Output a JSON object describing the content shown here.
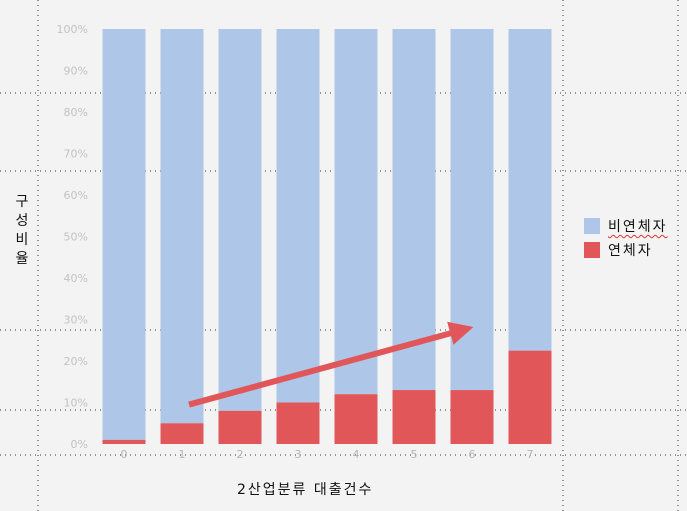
{
  "chart_data": {
    "type": "bar",
    "stacked": true,
    "categories": [
      "0",
      "1",
      "2",
      "3",
      "4",
      "5",
      "6",
      "7"
    ],
    "series": [
      {
        "name": "비연체자",
        "color": "#aec7e8",
        "values": [
          99,
          95,
          92,
          90,
          88,
          87,
          87,
          77.5
        ]
      },
      {
        "name": "연체자",
        "color": "#e15759",
        "values": [
          1,
          5,
          8,
          10,
          12,
          13,
          13,
          22.5
        ]
      }
    ],
    "ylim": [
      0,
      100
    ],
    "yticks": [
      "0%",
      "10%",
      "20%",
      "30%",
      "40%",
      "50%",
      "60%",
      "70%",
      "80%",
      "90%",
      "100%"
    ],
    "xlabel": "2산업분류 대출건수",
    "ylabel": "구성비율",
    "legend_position": "right",
    "annotation": {
      "type": "trend-arrow",
      "color": "#e15759",
      "from": [
        "1",
        9.5
      ],
      "to": [
        "6",
        27.5
      ]
    }
  }
}
